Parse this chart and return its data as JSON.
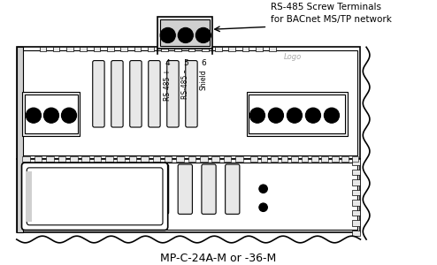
{
  "title": "MP-C-24A-M or -36-M",
  "annotation_text": "RS-485 Screw Terminals\nfor BACnet MS/TP network",
  "label_4": "4",
  "label_5": "5",
  "label_6": "6",
  "label_rs485_plus": "RS-485 +",
  "label_rs485_minus": "RS-485 –",
  "label_shield": "Shield",
  "label_logo": "Logo",
  "bg_color": "#ffffff",
  "line_color": "#000000",
  "gray_fill": "#c8c8c8",
  "light_gray": "#e8e8e8",
  "mid_gray": "#d0d0d0",
  "fig_width": 4.94,
  "fig_height": 3.0,
  "dpi": 100
}
